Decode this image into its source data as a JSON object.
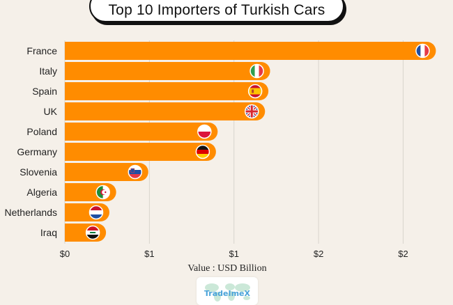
{
  "chart_data": {
    "type": "bar",
    "orientation": "horizontal",
    "title": "Top 10 Importers of Turkish Cars",
    "xlabel": "Value : USD Billion",
    "ylabel": "",
    "categories": [
      "France",
      "Italy",
      "Spain",
      "UK",
      "Poland",
      "Germany",
      "Slovenia",
      "Algeria",
      "Netherlands",
      "Iraq"
    ],
    "values": [
      2.14,
      1.16,
      1.15,
      1.13,
      0.85,
      0.84,
      0.44,
      0.25,
      0.21,
      0.19
    ],
    "xlim": [
      0,
      2.2
    ],
    "xticks": [
      0,
      0.5,
      1.0,
      1.5,
      2.0
    ],
    "xtick_labels": [
      "$0",
      "$1",
      "$1",
      "$2",
      "$2"
    ],
    "grid": "vertical",
    "bar_color": "#ff8c00",
    "flags": [
      "france-flag-icon",
      "italy-flag-icon",
      "spain-flag-icon",
      "uk-flag-icon",
      "poland-flag-icon",
      "germany-flag-icon",
      "slovenia-flag-icon",
      "algeria-flag-icon",
      "netherlands-flag-icon",
      "iraq-flag-icon"
    ]
  },
  "logo": {
    "text": "TradeImeX",
    "color": "#4aa3d9"
  }
}
